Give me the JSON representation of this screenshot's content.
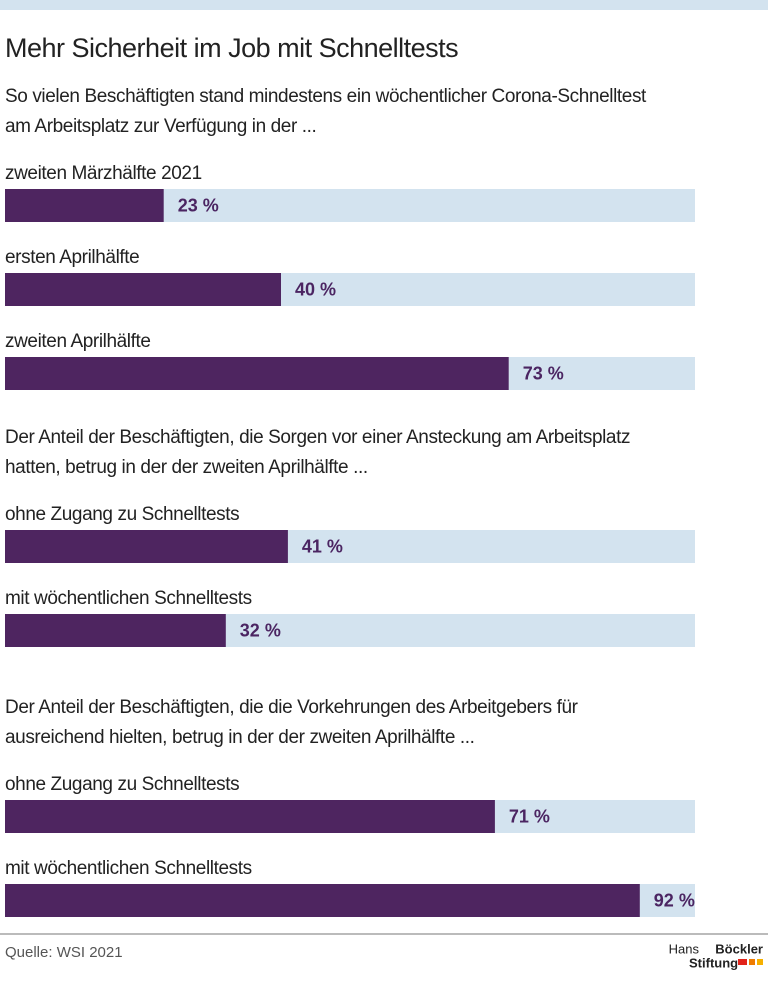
{
  "title": "Mehr Sicherheit im Job mit Schnelltests",
  "source": "Quelle: WSI 2021",
  "logo": {
    "line1": "Hans",
    "line1_bold": "Böckler",
    "line2": "Stiftung"
  },
  "chart_data": [
    {
      "type": "bar",
      "subtitle": [
        "So vielen Beschäftigten stand mindestens ein wöchentlicher Corona-Schnelltest",
        "am Arbeitsplatz zur Verfügung in der ..."
      ],
      "categories": [
        "zweiten Märzhälfte 2021",
        "ersten Aprilhälfte",
        "zweiten Aprilhälfte"
      ],
      "values": [
        23,
        40,
        73
      ],
      "value_labels": [
        "23 %",
        "40 %",
        "73 %"
      ],
      "xlim": [
        0,
        100
      ],
      "color": "#4e2560",
      "track_color": "#d3e3ef"
    },
    {
      "type": "bar",
      "subtitle": [
        "Der Anteil der Beschäftigten, die Sorgen vor einer Ansteckung am Arbeitsplatz",
        "hatten, betrug in der der zweiten Aprilhälfte ..."
      ],
      "categories": [
        "ohne Zugang zu Schnelltests",
        "mit wöchentlichen Schnelltests"
      ],
      "values": [
        41,
        32
      ],
      "value_labels": [
        "41 %",
        "32 %"
      ],
      "xlim": [
        0,
        100
      ],
      "color": "#4e2560",
      "track_color": "#d3e3ef"
    },
    {
      "type": "bar",
      "subtitle": [
        "Der Anteil der Beschäftigten, die die Vorkehrungen des Arbeitgebers für",
        "ausreichend hielten, betrug in der der zweiten Aprilhälfte ..."
      ],
      "categories": [
        "ohne Zugang zu Schnelltests",
        "mit wöchentlichen Schnelltests"
      ],
      "values": [
        71,
        92
      ],
      "value_labels": [
        "71 %",
        "92 %"
      ],
      "xlim": [
        0,
        100
      ],
      "color": "#4e2560",
      "track_color": "#d3e3ef"
    }
  ]
}
